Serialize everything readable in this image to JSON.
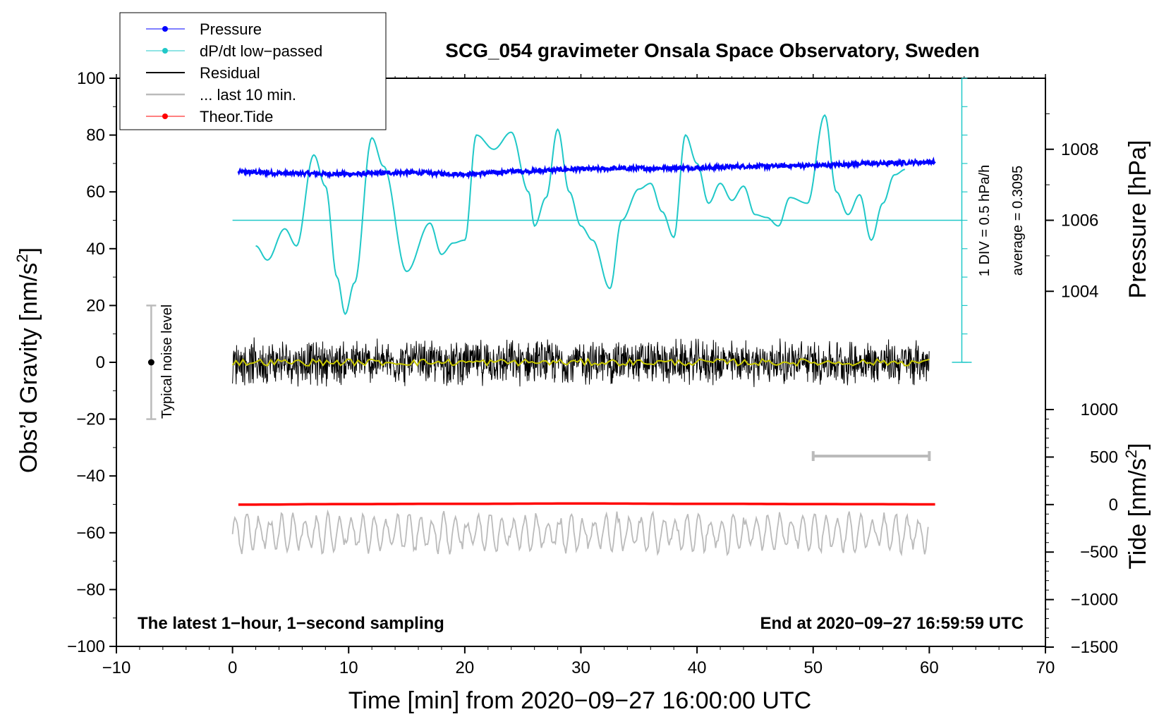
{
  "title": "SCG_054 gravimeter Onsala Space Observatory, Sweden",
  "chart_data": {
    "type": "line",
    "title": "SCG_054 gravimeter Onsala Space Observatory, Sweden",
    "xlabel": "Time [min] from 2020−09−27 16:00:00 UTC",
    "xlim": [
      -10,
      70
    ],
    "x_ticks": [
      -10,
      0,
      10,
      20,
      30,
      40,
      50,
      60,
      70
    ],
    "x_tick_labels": [
      "−10",
      "0",
      "10",
      "20",
      "30",
      "40",
      "50",
      "60",
      "70"
    ],
    "left_axis": {
      "label_prefix": "Obs’d Gravity [nm/s",
      "label_sup": "2",
      "label_suffix": "]",
      "ylim": [
        -100,
        100
      ],
      "ticks": [
        -100,
        -80,
        -60,
        -40,
        -20,
        0,
        20,
        40,
        60,
        80,
        100
      ],
      "tick_labels": [
        "−100",
        "−80",
        "−60",
        "−40",
        "−20",
        "0",
        "20",
        "40",
        "60",
        "80",
        "100"
      ]
    },
    "pressure_axis": {
      "label": "Pressure [hPa]",
      "ticks": [
        1004,
        1006,
        1008
      ],
      "tick_labels": [
        "1004",
        "1006",
        "1008"
      ],
      "gravity_equiv": {
        "1004": 25,
        "1006": 50,
        "1008": 75
      }
    },
    "tide_axis": {
      "label_prefix": "Tide [nm/s",
      "label_sup": "2",
      "label_suffix": "]",
      "ticks": [
        1000,
        500,
        0,
        -500,
        -1000,
        -1500
      ],
      "tick_labels": [
        "1000",
        "500",
        "0",
        "−500",
        "−1000",
        "−1500"
      ],
      "ylim": [
        -1500,
        1000
      ]
    },
    "dpdt_scale": {
      "label": "1 DIV = 0.5 hPa/h",
      "average_label": "average = 0.3095",
      "axis_x_min": 62.8,
      "range": [
        0,
        100
      ],
      "baseline_gravity": 50
    },
    "legend": {
      "position": "top-left",
      "entries": [
        {
          "label": "Pressure",
          "color": "#0000ff",
          "marker": true
        },
        {
          "label": "dP/dt low−passed",
          "color": "#20c8c8",
          "marker": true
        },
        {
          "label": "Residual",
          "color": "#000000",
          "marker": false
        },
        {
          "label": "... last 10 min.",
          "color": "#bbbbbb",
          "marker": false
        },
        {
          "label": "Theor.Tide",
          "color": "#ff0000",
          "marker": true
        }
      ]
    },
    "series": [
      {
        "name": "Pressure",
        "color": "#0000ff",
        "x": [
          0.5,
          5,
          10,
          15,
          20,
          25,
          30,
          35,
          40,
          45,
          50,
          55,
          60.5
        ],
        "y": [
          67,
          66.5,
          66.3,
          66.8,
          66.3,
          67.3,
          68,
          68.3,
          68.5,
          69,
          69.3,
          70,
          70.5
        ]
      },
      {
        "name": "dP/dt low−passed",
        "color": "#20c8c8",
        "x": [
          2,
          3,
          4.5,
          5.5,
          7,
          8,
          9,
          9.7,
          10.5,
          12,
          13,
          15,
          17,
          18,
          19,
          20,
          21,
          22.5,
          24,
          25.5,
          26,
          27,
          28,
          29,
          30,
          31,
          32.5,
          33.5,
          35,
          36,
          37,
          38,
          39,
          40,
          41,
          42,
          43,
          44,
          45,
          46,
          47,
          48,
          49.5,
          51,
          52,
          53,
          54,
          55,
          56,
          57,
          58
        ],
        "y": [
          41,
          36,
          47,
          41,
          73,
          62,
          30,
          17,
          28,
          79,
          69,
          32,
          49,
          38,
          42,
          43,
          80,
          75,
          81,
          60,
          48,
          58,
          82,
          60,
          48,
          43,
          26,
          50,
          61,
          63,
          53,
          44,
          80,
          70,
          56,
          63,
          57,
          62,
          52,
          51,
          48,
          58,
          56,
          87,
          60,
          52,
          59,
          43,
          56,
          66,
          68
        ]
      },
      {
        "name": "Residual",
        "color": "#000000",
        "x": [
          0,
          60
        ],
        "y": [
          0,
          0
        ],
        "noise_amplitude": 9
      },
      {
        "name": "... last 10 min.",
        "color": "#bbbbbb",
        "x": [
          0,
          60
        ],
        "y": [
          -60,
          -60
        ],
        "noise_amplitude": 7
      },
      {
        "name": "Theor.Tide",
        "color": "#ff0000",
        "x": [
          0.5,
          10,
          20,
          30,
          40,
          50,
          60.5
        ],
        "y": [
          -50.1,
          -49.9,
          -49.8,
          -49.7,
          -49.8,
          -49.9,
          -50
        ]
      }
    ],
    "noise_bar": {
      "label": "Typical noise level",
      "x": -7,
      "y": 0,
      "range": [
        -20,
        20
      ]
    },
    "window_bar": {
      "x_range": [
        50,
        60
      ],
      "y": -33
    },
    "annotations": {
      "bottom_left": "The latest 1−hour, 1−second sampling",
      "bottom_right": "End at 2020−09−27 16:59:59 UTC"
    }
  }
}
